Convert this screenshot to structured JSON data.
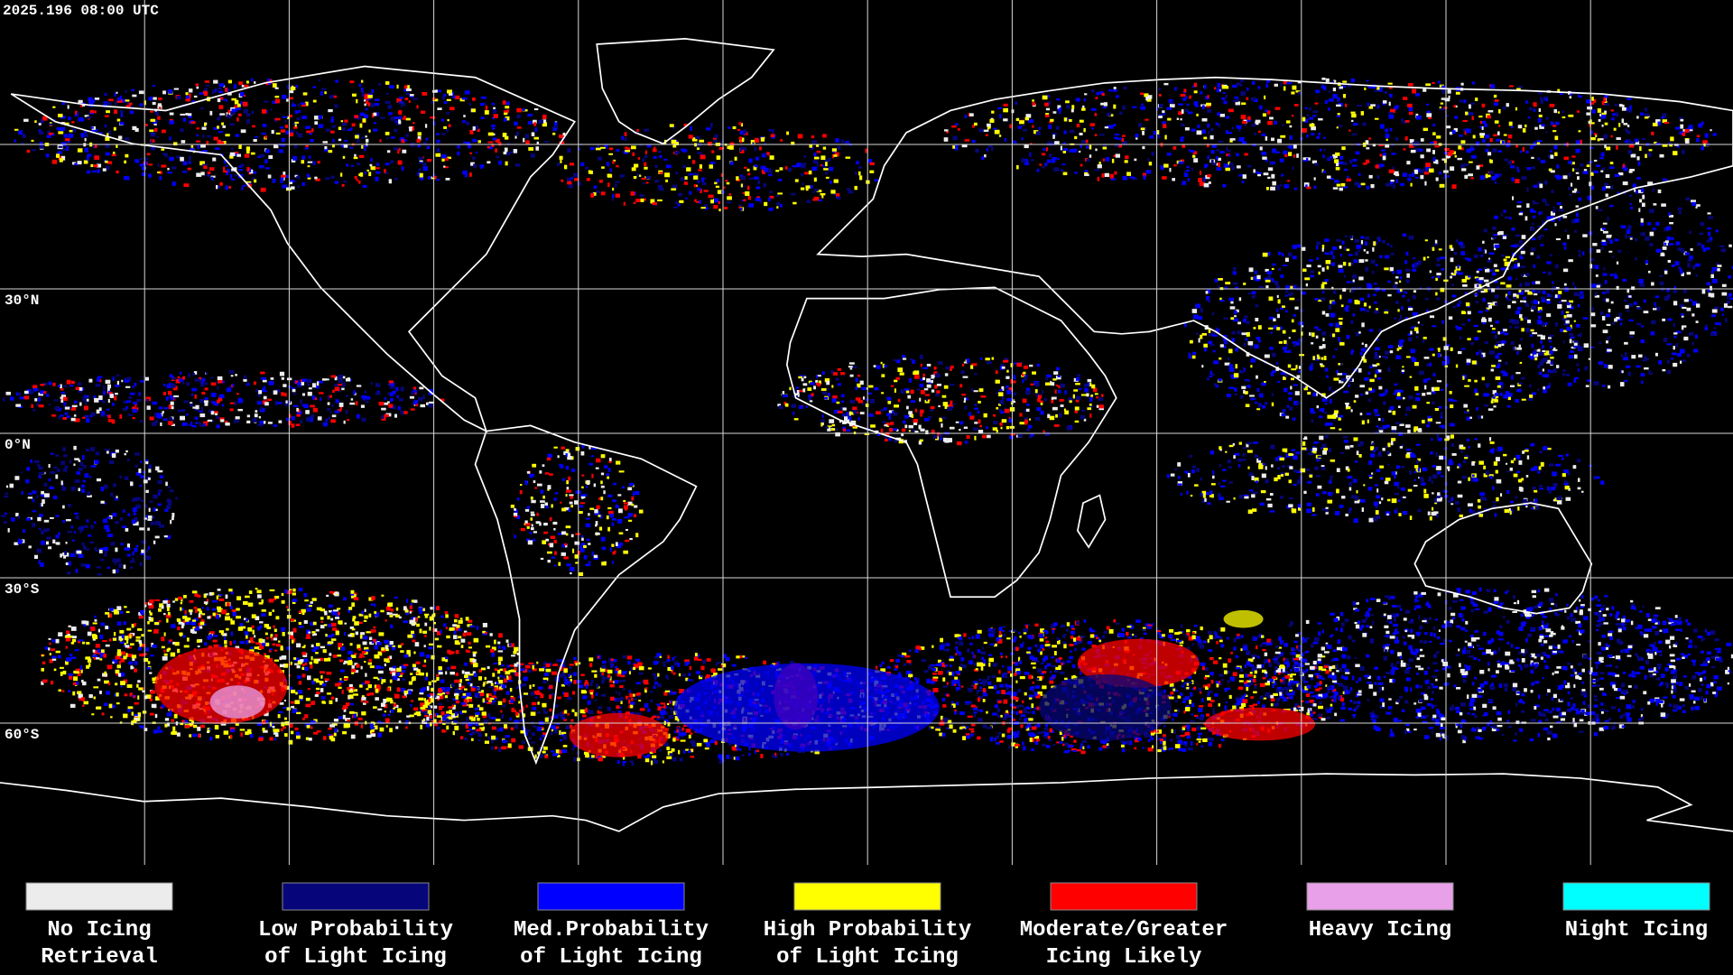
{
  "header": {
    "timestamp": "2025.196 08:00 UTC"
  },
  "map": {
    "lat_labels": [
      "30°N",
      "0°N",
      "30°S",
      "60°S"
    ]
  },
  "legend": {
    "items": [
      {
        "label_lines": [
          "No Icing",
          "Retrieval"
        ],
        "color": "#ececec"
      },
      {
        "label_lines": [
          "Low Probability",
          "of Light Icing"
        ],
        "color": "#06067a"
      },
      {
        "label_lines": [
          "Med.Probability",
          "of Light Icing"
        ],
        "color": "#0000ff"
      },
      {
        "label_lines": [
          "High Probability",
          "of Light Icing"
        ],
        "color": "#ffff00"
      },
      {
        "label_lines": [
          "Moderate/Greater",
          "Icing Likely"
        ],
        "color": "#ff0000"
      },
      {
        "label_lines": [
          "Heavy Icing",
          ""
        ],
        "color": "#e8a0e8"
      },
      {
        "label_lines": [
          "Night Icing",
          ""
        ],
        "color": "#00ffff"
      }
    ]
  }
}
